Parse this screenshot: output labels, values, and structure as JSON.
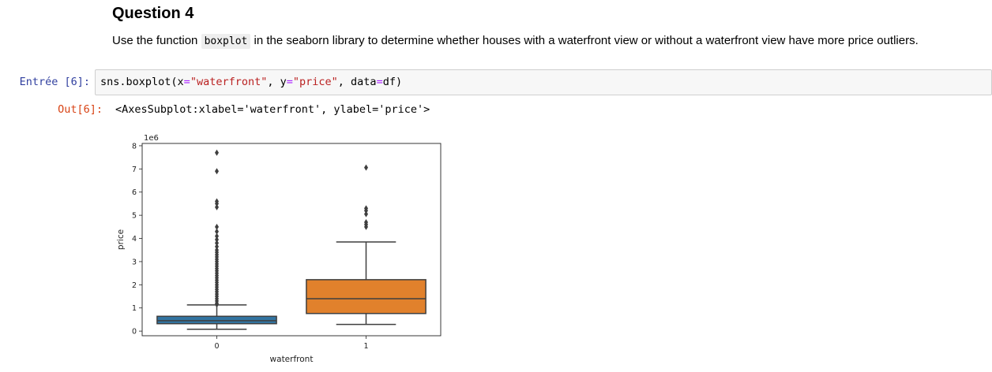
{
  "markdown": {
    "heading": "Question 4",
    "instruction_before": "Use the function ",
    "instruction_code": "boxplot",
    "instruction_after": " in the seaborn library to determine whether houses with a waterfront view or without a waterfront view have more price outliers."
  },
  "input_cell": {
    "prompt": "Entrée [6]:",
    "code_parts": {
      "call": "sns.boxplot(x",
      "eq1": "=",
      "str1": "\"waterfront\"",
      "sep1": ", y",
      "eq2": "=",
      "str2": "\"price\"",
      "sep2": ", data",
      "eq3": "=",
      "end": "df)"
    }
  },
  "output_cell": {
    "prompt": "Out[6]:",
    "text": "<AxesSubplot:xlabel='waterfront', ylabel='price'>"
  },
  "chart_data": {
    "type": "box",
    "xlabel": "waterfront",
    "ylabel": "price",
    "y_offset_text": "1e6",
    "categories": [
      "0",
      "1"
    ],
    "y_ticks": [
      "0",
      "1",
      "2",
      "3",
      "4",
      "5",
      "6",
      "7",
      "8"
    ],
    "ylim": [
      -0.2,
      8.1
    ],
    "colors": [
      "#3274a1",
      "#e1812c"
    ],
    "boxes": [
      {
        "category": "0",
        "whisker_low": 0.08,
        "q1": 0.32,
        "median": 0.45,
        "q3": 0.64,
        "whisker_high": 1.13,
        "outliers": [
          7.7,
          6.9,
          5.6,
          5.5,
          5.35,
          4.5,
          4.3,
          4.1,
          3.95,
          3.8,
          3.65,
          3.5,
          3.4,
          3.3,
          3.2,
          3.1,
          3.0,
          2.9,
          2.8,
          2.7,
          2.6,
          2.5,
          2.4,
          2.3,
          2.2,
          2.1,
          2.0,
          1.9,
          1.8,
          1.7,
          1.6,
          1.5,
          1.4,
          1.3,
          1.2,
          1.15
        ]
      },
      {
        "category": "1",
        "whisker_low": 0.29,
        "q1": 0.76,
        "median": 1.4,
        "q3": 2.22,
        "whisker_high": 3.85,
        "outliers": [
          7.06,
          5.3,
          5.2,
          5.05,
          4.7,
          4.6,
          4.5
        ]
      }
    ]
  }
}
